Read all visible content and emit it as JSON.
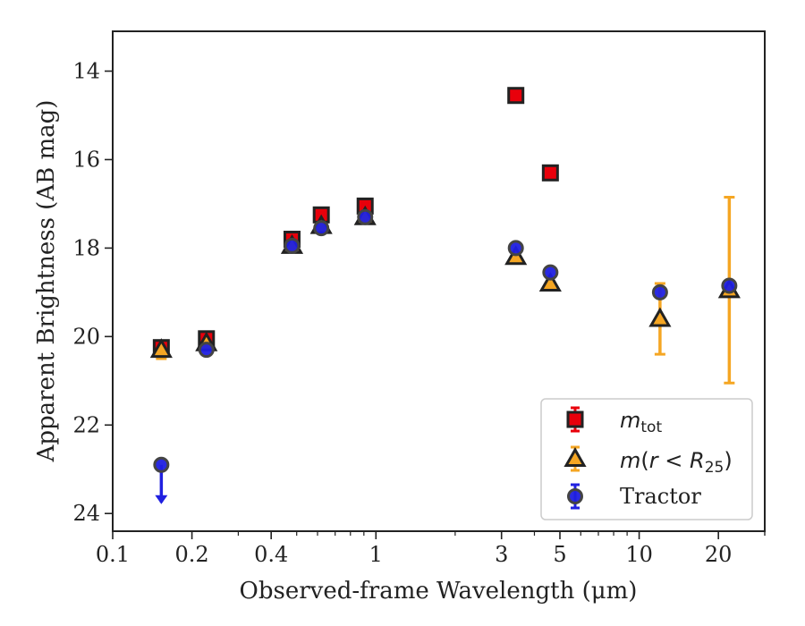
{
  "chart_data": {
    "type": "scatter",
    "xlabel": "Observed-frame Wavelength (μm)",
    "ylabel": "Apparent Brightness (AB mag)",
    "x_scale": "log",
    "xlim": [
      0.1,
      30
    ],
    "ylim": [
      24.4,
      13.1
    ],
    "y_inverted": true,
    "x_ticks": [
      0.1,
      0.2,
      0.4,
      1,
      3,
      5,
      10,
      20
    ],
    "x_tick_labels": [
      "0.1",
      "0.2",
      "0.4",
      "1",
      "3",
      "5",
      "10",
      "20"
    ],
    "y_ticks": [
      14,
      16,
      18,
      20,
      22,
      24
    ],
    "y_tick_labels": [
      "14",
      "16",
      "18",
      "20",
      "22",
      "24"
    ],
    "legend_position": "lower-right",
    "series": [
      {
        "key": "mtot",
        "marker": "square",
        "color": "#e8000b",
        "error_color": "#e8000b",
        "points": [
          {
            "x": 0.153,
            "y": 20.25
          },
          {
            "x": 0.227,
            "y": 20.05
          },
          {
            "x": 0.48,
            "y": 17.8
          },
          {
            "x": 0.62,
            "y": 17.25
          },
          {
            "x": 0.91,
            "y": 17.05
          },
          {
            "x": 3.4,
            "y": 14.55
          },
          {
            "x": 4.6,
            "y": 16.3
          }
        ]
      },
      {
        "key": "mr25",
        "marker": "triangle",
        "color": "#f5a623",
        "error_color": "#f5a623",
        "points": [
          {
            "x": 0.153,
            "y": 20.3,
            "err_low": 0.2,
            "err_high": 0.2
          },
          {
            "x": 0.227,
            "y": 20.15
          },
          {
            "x": 0.48,
            "y": 17.95
          },
          {
            "x": 0.62,
            "y": 17.5
          },
          {
            "x": 0.91,
            "y": 17.3
          },
          {
            "x": 3.4,
            "y": 18.2
          },
          {
            "x": 4.6,
            "y": 18.8
          },
          {
            "x": 12.0,
            "y": 19.6,
            "err_low": 0.8,
            "err_high": 0.8
          },
          {
            "x": 22.0,
            "y": 18.95,
            "err_low": 2.1,
            "err_high": 2.1
          }
        ]
      },
      {
        "key": "tractor",
        "marker": "circle",
        "color": "#1f1fe0",
        "error_color": "#2020e0",
        "points": [
          {
            "x": 0.153,
            "y": 22.9,
            "upper_limit": true
          },
          {
            "x": 0.227,
            "y": 20.3
          },
          {
            "x": 0.48,
            "y": 17.95
          },
          {
            "x": 0.62,
            "y": 17.55
          },
          {
            "x": 0.91,
            "y": 17.3
          },
          {
            "x": 3.4,
            "y": 18.0
          },
          {
            "x": 4.6,
            "y": 18.55
          },
          {
            "x": 12.0,
            "y": 19.0
          },
          {
            "x": 22.0,
            "y": 18.85
          }
        ]
      }
    ],
    "legend": {
      "mtot": {
        "sym": "m",
        "sub": "tot"
      },
      "mr25": {
        "m": "m",
        "open": "(",
        "r": "r",
        "lt": " < ",
        "R": "R",
        "sub": "25",
        "close": ")"
      },
      "tractor": {
        "label": "Tractor"
      }
    }
  }
}
